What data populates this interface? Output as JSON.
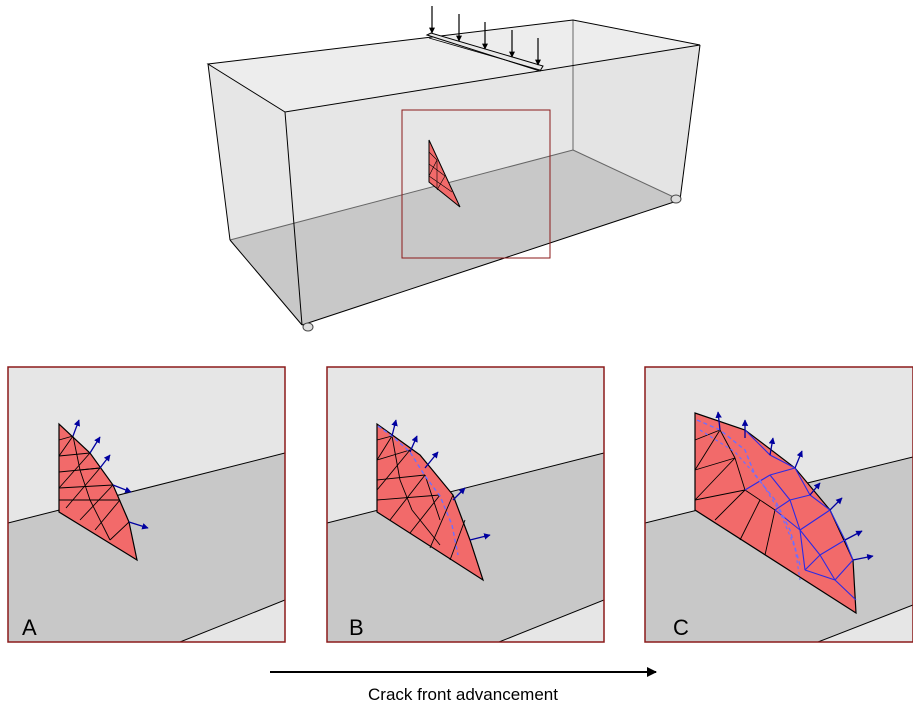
{
  "panels": [
    {
      "id": "a",
      "label": "A"
    },
    {
      "id": "b",
      "label": "B"
    },
    {
      "id": "c",
      "label": "C"
    }
  ],
  "caption": "Crack front advancement",
  "colors": {
    "crack_fill": "#f26a6a",
    "front_arrow": "#0000a0",
    "new_mesh": "#2a2ae6",
    "old_front_dashed": "#6e6eff",
    "box_top": "#e6e6e6",
    "box_bottom": "#c8c8c8",
    "inset_frame": "#8b1a1a"
  },
  "icons": {
    "load_arrows": "down-arrow-icon",
    "supports": "roller-support-icon",
    "advance": "right-arrow-icon"
  }
}
